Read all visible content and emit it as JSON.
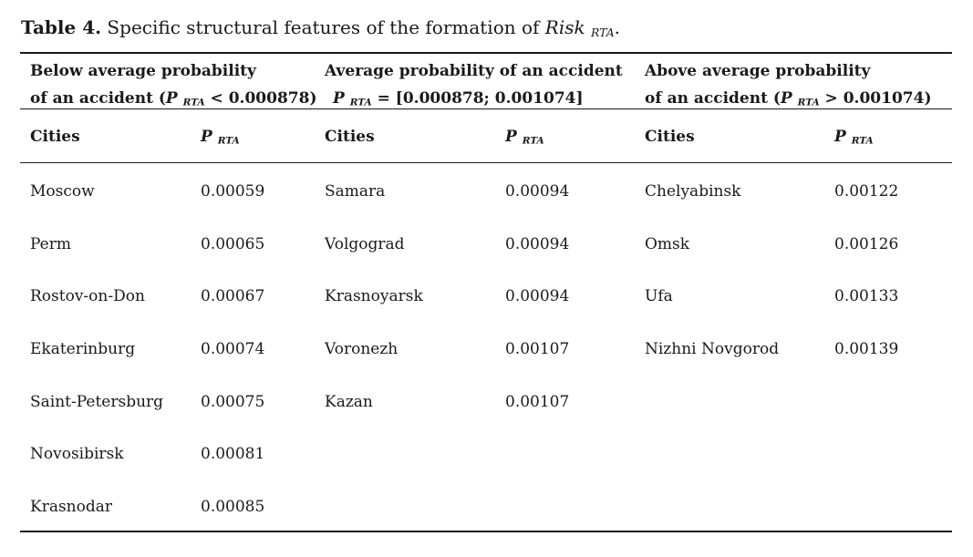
{
  "caption": {
    "label": "Table 4.",
    "text": " Specific structural features of the formation of ",
    "risk": "Risk",
    "risk_sub": "RTA",
    "end": "."
  },
  "groups": [
    {
      "line1": "Below average probability",
      "line2_pre": "of an accident (",
      "p": "P",
      "p_sub": "RTA",
      "line2_post": " < 0.000878)"
    },
    {
      "line1": "Average probability of an accident",
      "line2_pre": "",
      "p": "P",
      "p_sub": "RTA",
      "line2_post": " = [0.000878; 0.001074]"
    },
    {
      "line1": "Above average probability",
      "line2_pre": "of an accident (",
      "p": "P",
      "p_sub": "RTA",
      "line2_post": " > 0.001074)"
    }
  ],
  "column_headers": {
    "cities": "Cities",
    "p": "P",
    "p_sub": "RTA"
  },
  "groups_rows": [
    [
      {
        "city": "Moscow",
        "value": "0.00059"
      },
      {
        "city": "Perm",
        "value": "0.00065"
      },
      {
        "city": "Rostov-on-Don",
        "value": "0.00067"
      },
      {
        "city": "Ekaterinburg",
        "value": "0.00074"
      },
      {
        "city": "Saint-Petersburg",
        "value": "0.00075"
      },
      {
        "city": "Novosibirsk",
        "value": "0.00081"
      },
      {
        "city": "Krasnodar",
        "value": "0.00085"
      }
    ],
    [
      {
        "city": "Samara",
        "value": "0.00094"
      },
      {
        "city": "Volgograd",
        "value": "0.00094"
      },
      {
        "city": "Krasnoyarsk",
        "value": "0.00094"
      },
      {
        "city": "Voronezh",
        "value": "0.00107"
      },
      {
        "city": "Kazan",
        "value": "0.00107"
      }
    ],
    [
      {
        "city": "Chelyabinsk",
        "value": "0.00122"
      },
      {
        "city": "Omsk",
        "value": "0.00126"
      },
      {
        "city": "Ufa",
        "value": "0.00133"
      },
      {
        "city": "Nizhni Novgorod",
        "value": "0.00139"
      }
    ]
  ]
}
